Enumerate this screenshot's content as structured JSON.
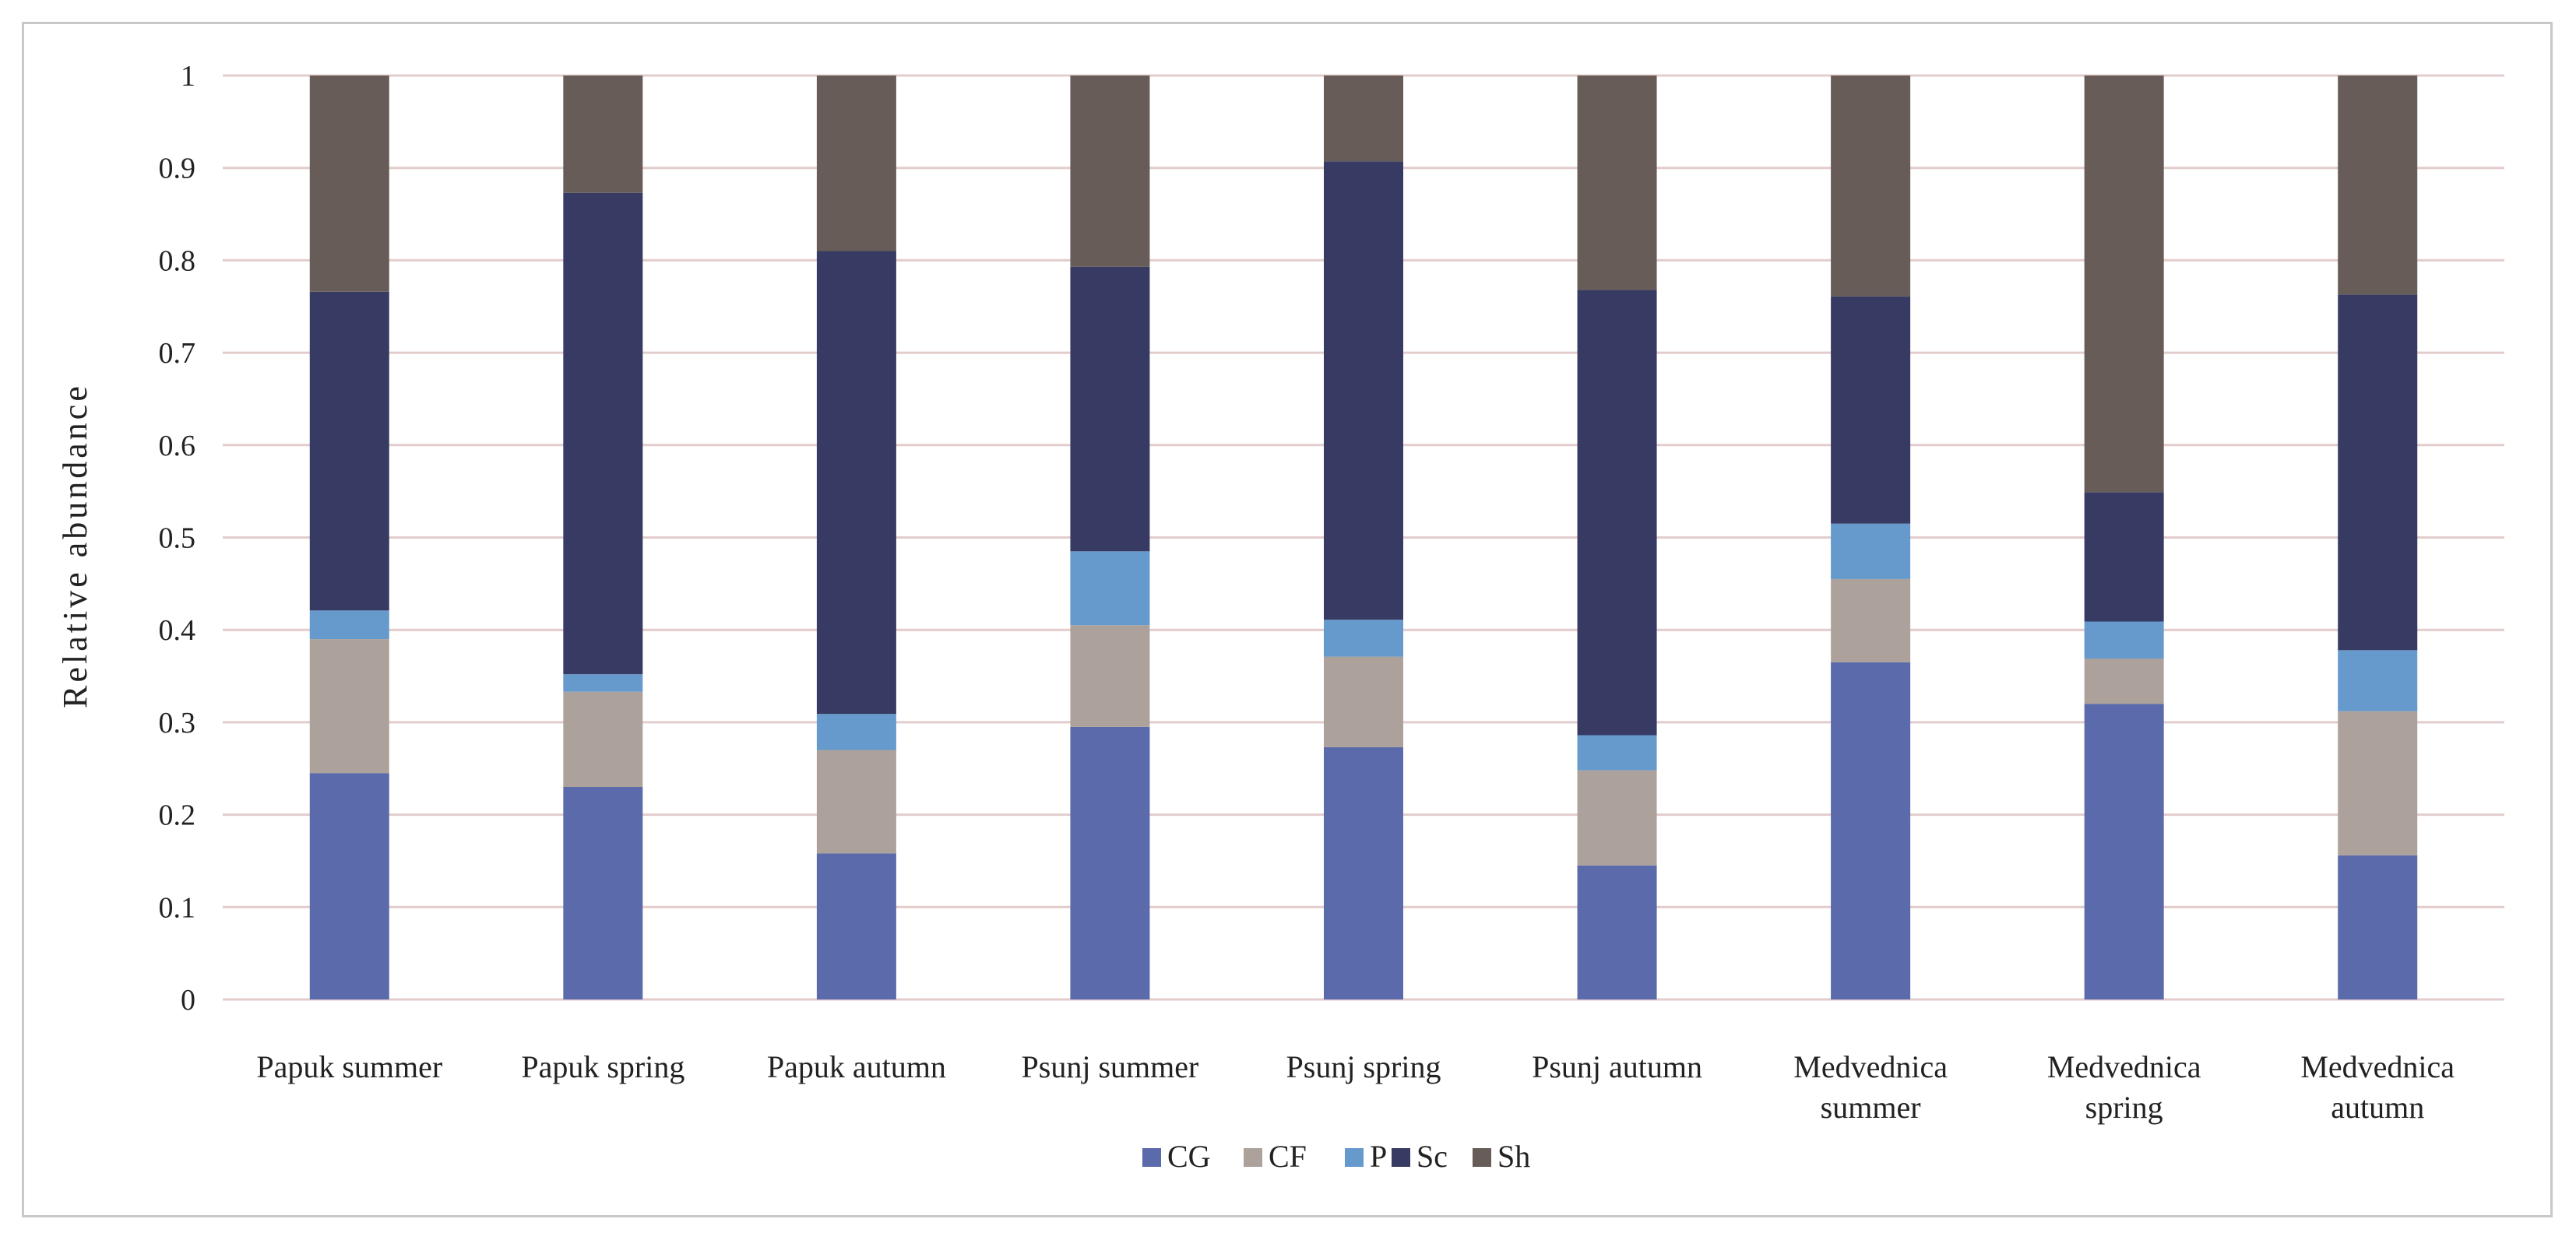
{
  "chart_data": {
    "type": "bar",
    "stacked": true,
    "title": "",
    "xlabel": "",
    "ylabel": "Relative abundance",
    "ylim": [
      0,
      1
    ],
    "yticks": [
      "0",
      "0.1",
      "0.2",
      "0.3",
      "0.4",
      "0.5",
      "0.6",
      "0.7",
      "0.8",
      "0.9",
      "1"
    ],
    "grid": true,
    "legend_position": "bottom",
    "categories": [
      [
        "Papuk summer"
      ],
      [
        "Papuk spring"
      ],
      [
        "Papuk autumn"
      ],
      [
        "Psunj summer"
      ],
      [
        "Psunj spring"
      ],
      [
        "Psunj autumn"
      ],
      [
        "Medvednica",
        "summer"
      ],
      [
        "Medvednica",
        "spring"
      ],
      [
        "Medvednica",
        "autumn"
      ]
    ],
    "series": [
      {
        "name": "CG",
        "color": "#5b6aaa",
        "values": [
          0.245,
          0.23,
          0.158,
          0.295,
          0.273,
          0.145,
          0.365,
          0.32,
          0.156
        ]
      },
      {
        "name": "CF",
        "color": "#ada29b",
        "values": [
          0.145,
          0.103,
          0.112,
          0.11,
          0.098,
          0.103,
          0.09,
          0.049,
          0.156
        ]
      },
      {
        "name": "P",
        "color": "#6699cc",
        "values": [
          0.031,
          0.019,
          0.039,
          0.08,
          0.04,
          0.038,
          0.06,
          0.04,
          0.066
        ]
      },
      {
        "name": "Sc",
        "color": "#373b63",
        "values": [
          0.345,
          0.521,
          0.501,
          0.308,
          0.496,
          0.482,
          0.246,
          0.14,
          0.385
        ]
      },
      {
        "name": "Sh",
        "color": "#675c57",
        "values": [
          0.234,
          0.127,
          0.19,
          0.207,
          0.093,
          0.232,
          0.239,
          0.451,
          0.237
        ]
      }
    ]
  }
}
